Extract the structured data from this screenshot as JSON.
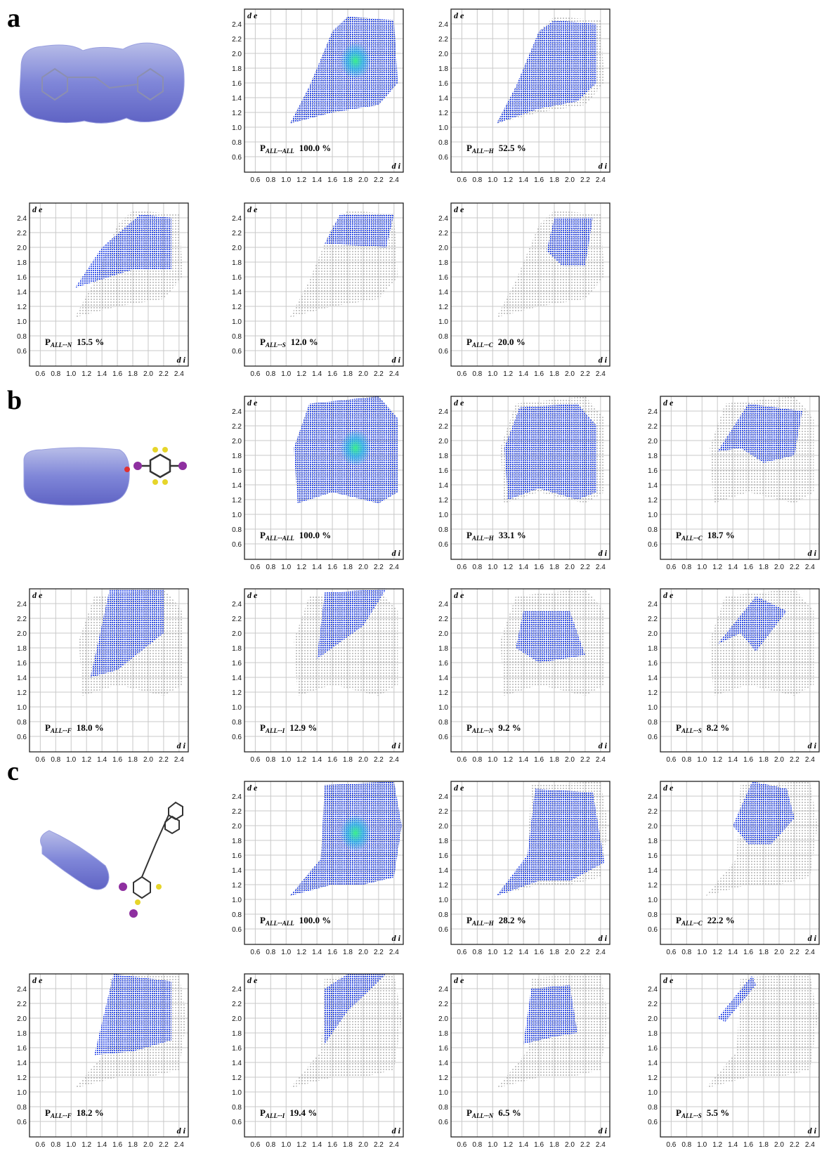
{
  "chart_data": {
    "type": "fingerprint",
    "xlabel": "d i",
    "ylabel": "d e",
    "xlim": [
      0.46,
      2.52
    ],
    "ylim": [
      0.39,
      2.6
    ],
    "xticks": [
      0.6,
      0.8,
      {
        "value": 1,
        "label": "1.0"
      },
      1.2,
      1.4,
      1.6,
      1.8,
      {
        "value": 2,
        "label": "2.0"
      },
      2.2,
      2.4
    ],
    "yticks": [
      0.6,
      0.8,
      {
        "value": 1,
        "label": "1.0"
      },
      1.2,
      1.4,
      1.6,
      1.8,
      {
        "value": 2,
        "label": "2.0"
      },
      2.2,
      2.4
    ],
    "panels": [
      {
        "label": "a",
        "plots": [
          {
            "label": "P",
            "subscript": "ALL···ALL",
            "value": 100,
            "value_label": "100.0 %"
          },
          {
            "label": "P",
            "subscript": "ALL···H",
            "value": 52.5,
            "value_label": "52.5 %"
          },
          {
            "label": "P",
            "subscript": "ALL···N",
            "value": 15.5,
            "value_label": "15.5 %"
          },
          {
            "label": "P",
            "subscript": "ALL···S",
            "value": 12,
            "value_label": "12.0 %"
          },
          {
            "label": "P",
            "subscript": "ALL···C",
            "value": 20,
            "value_label": "20.0 %"
          }
        ]
      },
      {
        "label": "b",
        "plots": [
          {
            "label": "P",
            "subscript": "ALL···ALL",
            "value": 100,
            "value_label": "100.0 %"
          },
          {
            "label": "P",
            "subscript": "ALL···H",
            "value": 33.1,
            "value_label": "33.1 %"
          },
          {
            "label": "P",
            "subscript": "ALL···C",
            "value": 18.7,
            "value_label": "18.7 %"
          },
          {
            "label": "P",
            "subscript": "ALL···F",
            "value": 18,
            "value_label": "18.0 %"
          },
          {
            "label": "P",
            "subscript": "ALL···I",
            "value": 12.9,
            "value_label": "12.9 %"
          },
          {
            "label": "P",
            "subscript": "ALL···N",
            "value": 9.2,
            "value_label": "9.2 %"
          },
          {
            "label": "P",
            "subscript": "ALL···S",
            "value": 8.2,
            "value_label": "8.2 %"
          }
        ]
      },
      {
        "label": "c",
        "plots": [
          {
            "label": "P",
            "subscript": "ALL···ALL",
            "value": 100,
            "value_label": "100.0 %"
          },
          {
            "label": "P",
            "subscript": "ALL···H",
            "value": 28.2,
            "value_label": "28.2 %"
          },
          {
            "label": "P",
            "subscript": "ALL···C",
            "value": 22.2,
            "value_label": "22.2 %"
          },
          {
            "label": "P",
            "subscript": "ALL···F",
            "value": 18.2,
            "value_label": "18.2 %"
          },
          {
            "label": "P",
            "subscript": "ALL···I",
            "value": 19.4,
            "value_label": "19.4 %"
          },
          {
            "label": "P",
            "subscript": "ALL···N",
            "value": 6.5,
            "value_label": "6.5 %"
          },
          {
            "label": "P",
            "subscript": "ALL···S",
            "value": 5.5,
            "value_label": "5.5 %"
          }
        ]
      }
    ]
  }
}
